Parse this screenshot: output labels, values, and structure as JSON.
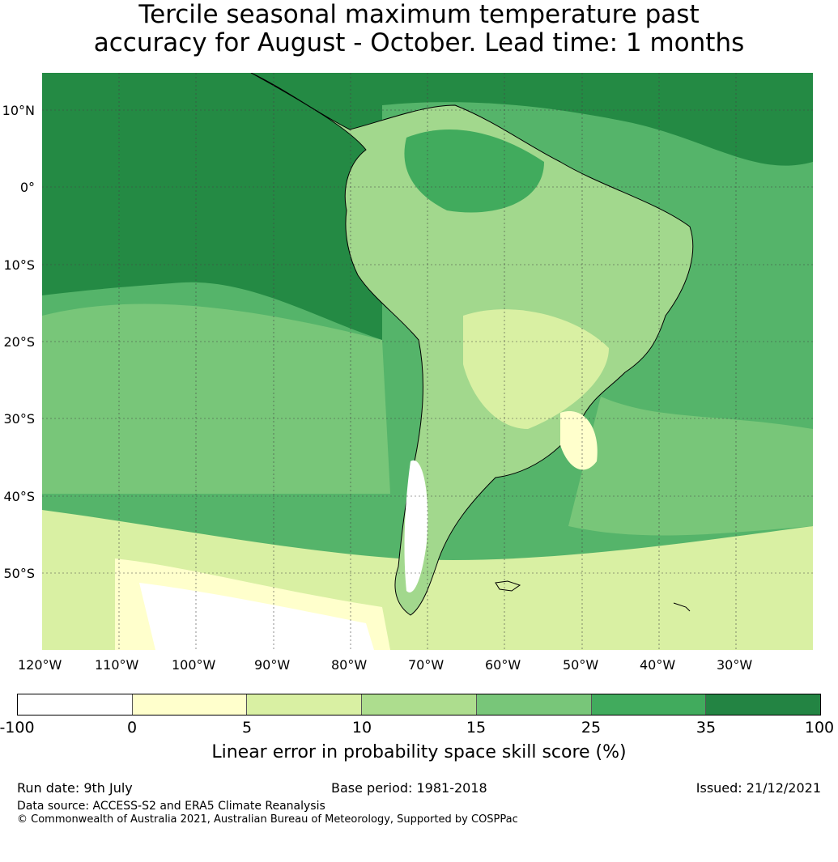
{
  "title": {
    "line1": "Tercile seasonal maximum temperature past",
    "line2": "accuracy for August - October. Lead time: 1 months"
  },
  "map": {
    "lat_labels": [
      "10°N",
      "0°",
      "10°S",
      "20°S",
      "30°S",
      "40°S",
      "50°S"
    ],
    "lon_labels": [
      "120°W",
      "110°W",
      "100°W",
      "90°W",
      "80°W",
      "70°W",
      "60°W",
      "50°W",
      "40°W",
      "30°W"
    ],
    "ocean_base_color": "#55b46a",
    "tropical_pacific_color": "#248a44",
    "land_color": "#a2d88d"
  },
  "colorbar": {
    "colors": [
      "#ffffff",
      "#ffffcc",
      "#d9f0a3",
      "#addd8e",
      "#78c679",
      "#41ab5d",
      "#238443"
    ],
    "ticks": [
      "-100",
      "0",
      "5",
      "10",
      "15",
      "25",
      "35",
      "100"
    ],
    "label": "Linear error in probability space skill score (%)"
  },
  "footer": {
    "run_date": "Run date: 9th July",
    "base_period": "Base period: 1981-2018",
    "issued": "Issued: 21/12/2021",
    "data_source": "Data source: ACCESS-S2 and ERA5 Climate Reanalysis",
    "copyright": "© Commonwealth of Australia 2021, Australian Bureau of Meteorology, Supported by COSPPac"
  }
}
